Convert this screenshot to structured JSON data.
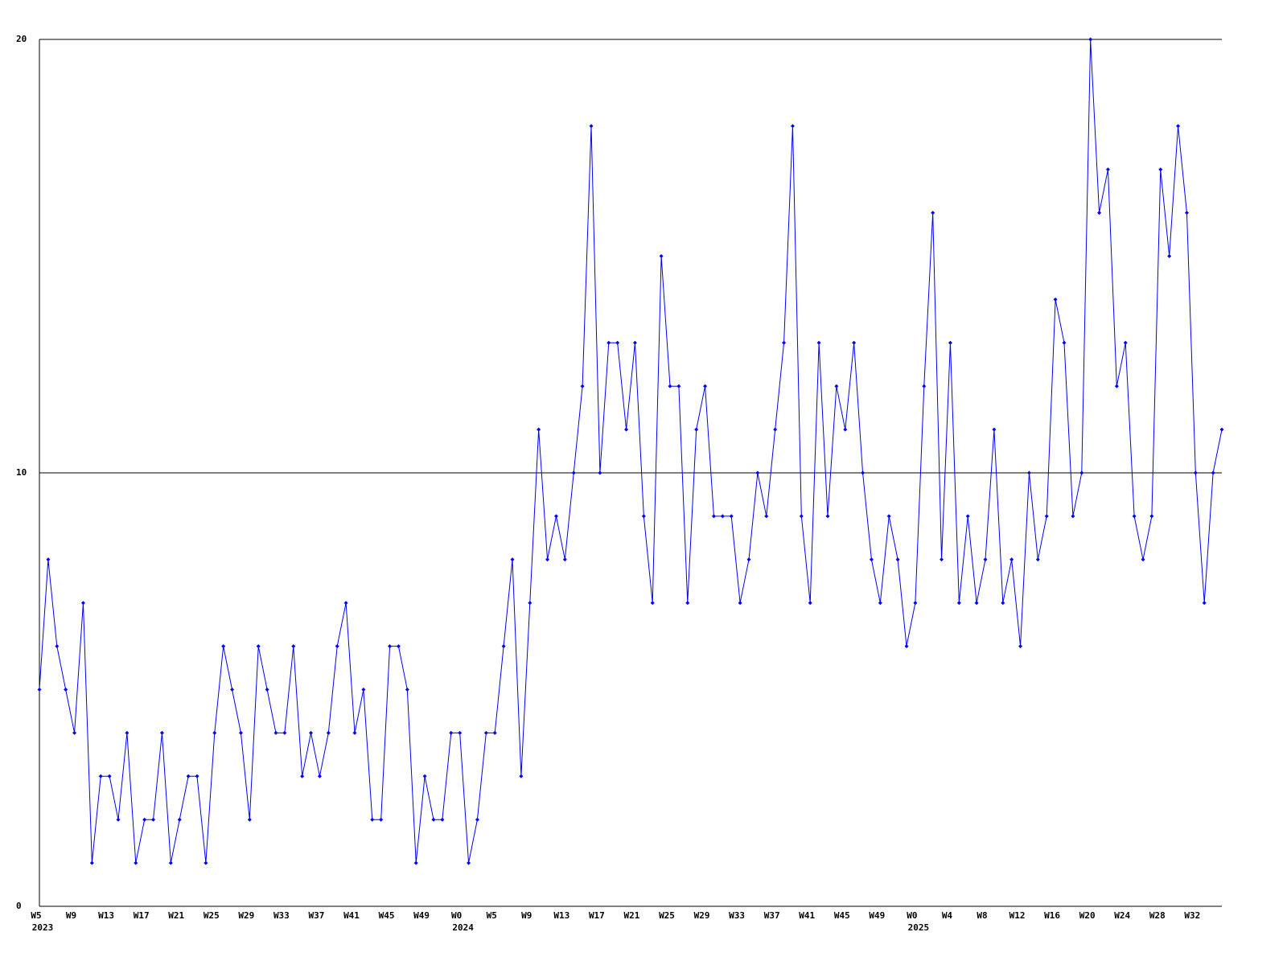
{
  "chart_data": {
    "type": "line",
    "color": "#0000ff",
    "grid": true,
    "categories": [
      "W5",
      null,
      null,
      null,
      "W9",
      null,
      null,
      null,
      "W13",
      null,
      null,
      null,
      "W17",
      null,
      null,
      null,
      "W21",
      null,
      null,
      null,
      "W25",
      null,
      null,
      null,
      "W29",
      null,
      null,
      null,
      "W33",
      null,
      null,
      null,
      "W37",
      null,
      null,
      null,
      "W41",
      null,
      null,
      null,
      "W45",
      null,
      null,
      null,
      "W49",
      null,
      null,
      null,
      "W0",
      null,
      null,
      null,
      "W5",
      null,
      null,
      null,
      "W9",
      null,
      null,
      null,
      "W13",
      null,
      null,
      null,
      "W17",
      null,
      null,
      null,
      "W21",
      null,
      null,
      null,
      "W25",
      null,
      null,
      null,
      "W29",
      null,
      null,
      null,
      "W33",
      null,
      null,
      null,
      "W37",
      null,
      null,
      null,
      "W41",
      null,
      null,
      null,
      "W45",
      null,
      null,
      null,
      "W49",
      null,
      null,
      null,
      "W0",
      null,
      null,
      null,
      "W4",
      null,
      null,
      null,
      "W8",
      null,
      null,
      null,
      "W12",
      null,
      null,
      null,
      "W16",
      null,
      null,
      null,
      "W20",
      null,
      null,
      null,
      "W24",
      null,
      null,
      null,
      "W28",
      null,
      null,
      null,
      "W32",
      null,
      null,
      null
    ],
    "category_years": [
      "2023",
      null,
      null,
      null,
      null,
      null,
      null,
      null,
      null,
      null,
      null,
      null,
      null,
      null,
      null,
      null,
      null,
      null,
      null,
      null,
      null,
      null,
      null,
      null,
      null,
      null,
      null,
      null,
      null,
      null,
      null,
      null,
      null,
      null,
      null,
      null,
      null,
      null,
      null,
      null,
      null,
      null,
      null,
      null,
      null,
      null,
      null,
      null,
      "2024",
      null,
      null,
      null,
      null,
      null,
      null,
      null,
      null,
      null,
      null,
      null,
      null,
      null,
      null,
      null,
      null,
      null,
      null,
      null,
      null,
      null,
      null,
      null,
      null,
      null,
      null,
      null,
      null,
      null,
      null,
      null,
      null,
      null,
      null,
      null,
      null,
      null,
      null,
      null,
      null,
      null,
      null,
      null,
      null,
      null,
      null,
      null,
      null,
      null,
      null,
      null,
      "2025",
      null,
      null,
      null,
      null,
      null,
      null,
      null,
      null,
      null,
      null,
      null,
      null,
      null,
      null,
      null,
      null,
      null,
      null,
      null,
      null,
      null,
      null,
      null,
      null,
      null,
      null,
      null,
      null,
      null,
      null,
      null,
      null,
      null,
      null,
      null
    ],
    "values": [
      5,
      8,
      6,
      5,
      4,
      7,
      1,
      3,
      3,
      2,
      4,
      1,
      2,
      2,
      4,
      1,
      2,
      3,
      3,
      1,
      4,
      6,
      5,
      4,
      2,
      6,
      5,
      4,
      4,
      6,
      3,
      4,
      3,
      4,
      6,
      7,
      4,
      5,
      2,
      2,
      6,
      6,
      5,
      1,
      3,
      2,
      2,
      4,
      4,
      1,
      2,
      4,
      4,
      6,
      8,
      3,
      7,
      11,
      8,
      9,
      8,
      10,
      12,
      18,
      10,
      13,
      13,
      11,
      13,
      9,
      7,
      15,
      12,
      12,
      7,
      11,
      12,
      9,
      9,
      9,
      7,
      8,
      10,
      9,
      11,
      13,
      18,
      9,
      7,
      13,
      9,
      12,
      11,
      13,
      10,
      8,
      7,
      9,
      8,
      6,
      7,
      12,
      16,
      8,
      13,
      7,
      9,
      7,
      8,
      11,
      7,
      8,
      6,
      10,
      8,
      9,
      14,
      13,
      9,
      10,
      20,
      16,
      17,
      12,
      13,
      9,
      8,
      9,
      17,
      15,
      18,
      16,
      10,
      7,
      10,
      11
    ],
    "ylim": [
      0,
      20
    ],
    "yticks": [
      0,
      10,
      20
    ]
  }
}
